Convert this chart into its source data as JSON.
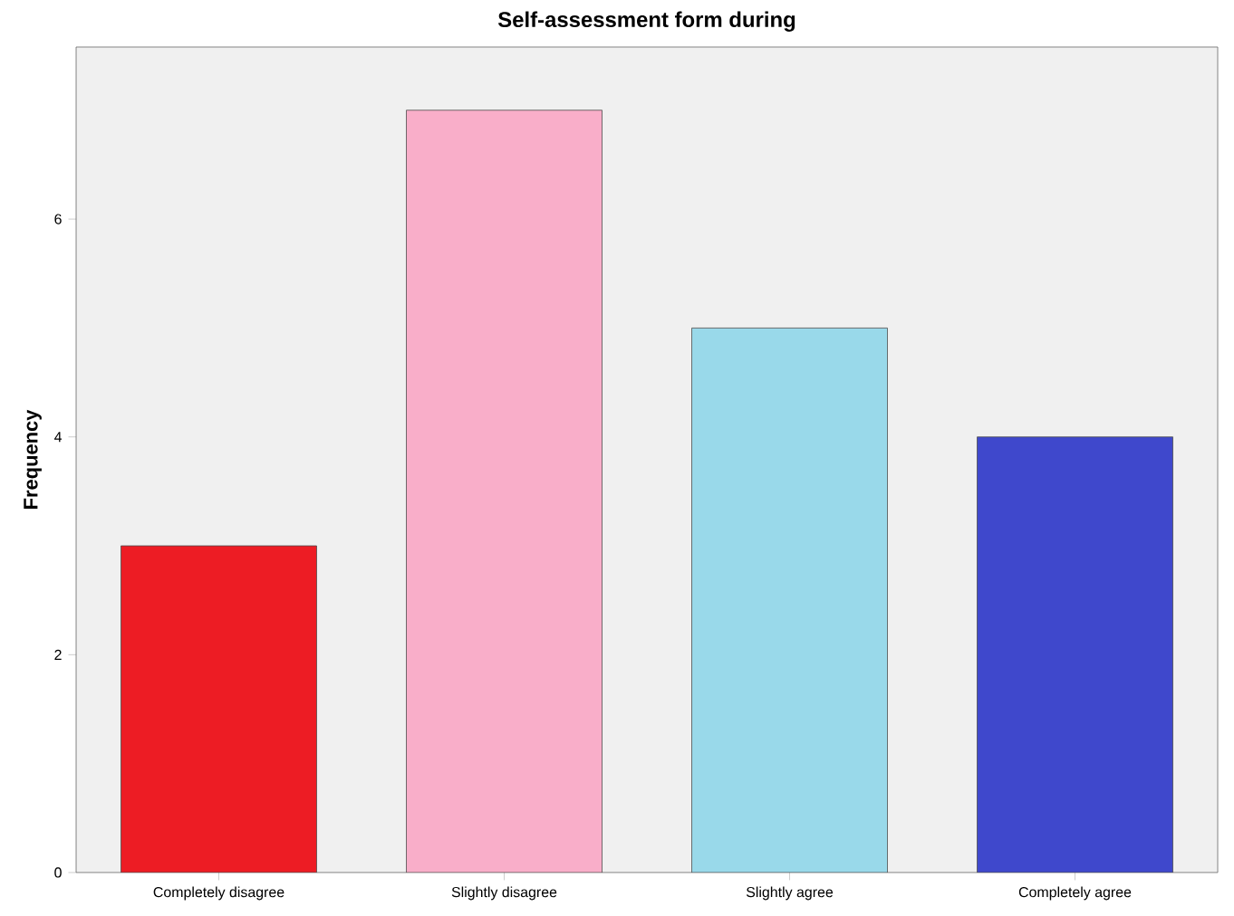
{
  "chart_data": {
    "type": "bar",
    "title": "Self-assessment form during",
    "ylabel": "Frequency",
    "categories": [
      "Completely disagree",
      "Slightly disagree",
      "Slightly agree",
      "Completely agree"
    ],
    "values": [
      3,
      7,
      5,
      4
    ],
    "colors": [
      "#ed1c24",
      "#f9aec9",
      "#99d9ea",
      "#3f48cc"
    ],
    "ylim": [
      0,
      7.58
    ],
    "yticks": [
      0,
      2,
      4,
      6
    ]
  }
}
